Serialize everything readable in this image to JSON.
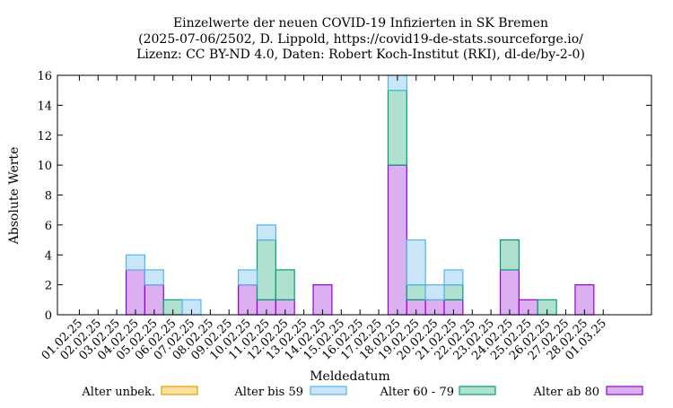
{
  "chart_data": {
    "type": "bar",
    "stacked": true,
    "title": [
      "Einzelwerte der neuen COVID-19 Infizierten in SK Bremen",
      "(2025-07-06/2502, D. Lippold, https://covid19-de-stats.sourceforge.io/",
      "Lizenz: CC BY-ND 4.0, Daten: Robert Koch-Institut (RKI), dl-de/by-2-0)"
    ],
    "xlabel": "Meldedatum",
    "ylabel": "Absolute Werte",
    "ylim": [
      0,
      16
    ],
    "yticks": [
      0,
      2,
      4,
      6,
      8,
      10,
      12,
      14,
      16
    ],
    "grid": false,
    "legend_position": "bottom",
    "categories": [
      "01.02.25",
      "02.02.25",
      "03.02.25",
      "04.02.25",
      "05.02.25",
      "06.02.25",
      "07.02.25",
      "08.02.25",
      "09.02.25",
      "10.02.25",
      "11.02.25",
      "12.02.25",
      "13.02.25",
      "14.02.25",
      "15.02.25",
      "16.02.25",
      "17.02.25",
      "18.02.25",
      "19.02.25",
      "20.02.25",
      "21.02.25",
      "22.02.25",
      "23.02.25",
      "24.02.25",
      "25.02.25",
      "26.02.25",
      "27.02.25",
      "28.02.25",
      "01.03.25"
    ],
    "series": [
      {
        "name": "Alter ab 80",
        "color": "#dcb0f0",
        "stroke": "#9400d3",
        "values": [
          0,
          0,
          0,
          3,
          2,
          0,
          0,
          0,
          0,
          2,
          1,
          1,
          0,
          2,
          0,
          0,
          0,
          10,
          1,
          1,
          1,
          0,
          0,
          3,
          1,
          0,
          0,
          2,
          0
        ]
      },
      {
        "name": "Alter 60 - 79",
        "color": "#b0e0d0",
        "stroke": "#009e73",
        "values": [
          0,
          0,
          0,
          0,
          0,
          1,
          0,
          0,
          0,
          0,
          4,
          2,
          0,
          0,
          0,
          0,
          0,
          5,
          1,
          0,
          1,
          0,
          0,
          2,
          0,
          1,
          0,
          0,
          0
        ]
      },
      {
        "name": "Alter bis 59",
        "color": "#c8e6f8",
        "stroke": "#56b4e9",
        "values": [
          0,
          0,
          0,
          1,
          1,
          0,
          1,
          0,
          0,
          1,
          1,
          0,
          0,
          0,
          0,
          0,
          0,
          1,
          3,
          1,
          1,
          0,
          0,
          0,
          0,
          0,
          0,
          0,
          0
        ]
      },
      {
        "name": "Alter unbek.",
        "color": "#fce0a0",
        "stroke": "#e69f00",
        "values": [
          0,
          0,
          0,
          0,
          0,
          0,
          0,
          0,
          0,
          0,
          0,
          0,
          0,
          0,
          0,
          0,
          0,
          0,
          0,
          0,
          0,
          0,
          0,
          0,
          0,
          0,
          0,
          0,
          0
        ]
      }
    ],
    "legend_order": [
      "Alter unbek.",
      "Alter bis 59",
      "Alter 60 - 79",
      "Alter ab 80"
    ]
  }
}
